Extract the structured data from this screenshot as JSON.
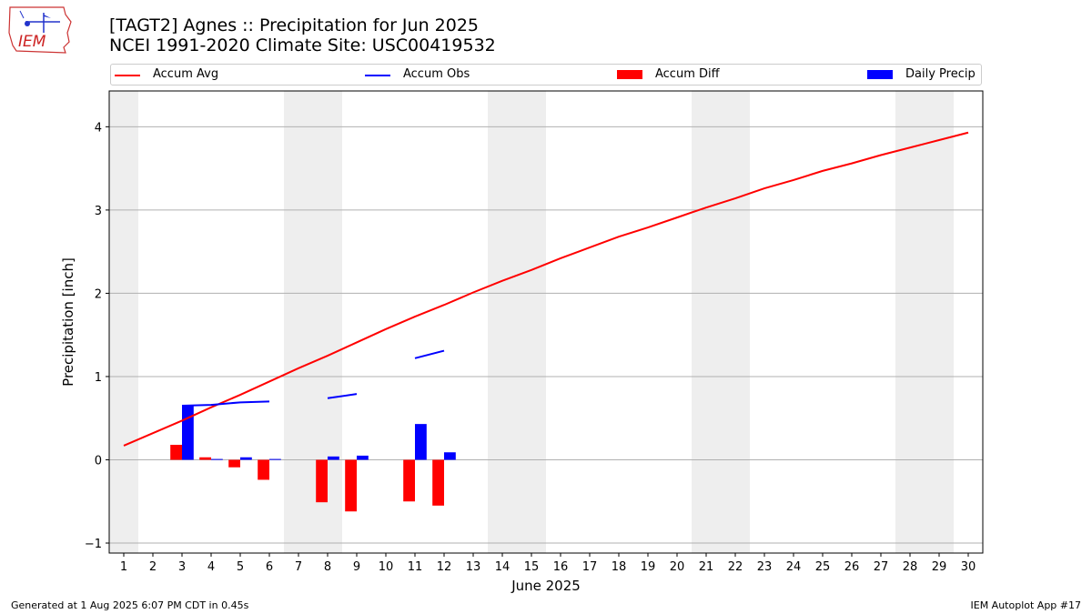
{
  "header": {
    "title_line1": "[TAGT2] Agnes :: Precipitation for Jun 2025",
    "title_line2": "NCEI 1991-2020 Climate Site: USC00419532",
    "logo_text": "IEM"
  },
  "legend": {
    "accum_avg": "Accum Avg",
    "accum_obs": "Accum Obs",
    "accum_diff": "Accum Diff",
    "daily_precip": "Daily Precip"
  },
  "footer": {
    "generated": "Generated at 1 Aug 2025 6:07 PM CDT in 0.45s",
    "app": "IEM Autoplot App #17"
  },
  "colors": {
    "avg": "#ff0000",
    "obs": "#0000ff",
    "diff": "#ff0000",
    "precip": "#0000ff",
    "weekend": "#eeeeee",
    "grid": "#b0b0b0"
  },
  "chart_data": {
    "type": "bar",
    "title": "[TAGT2] Agnes :: Precipitation for Jun 2025",
    "subtitle": "NCEI 1991-2020 Climate Site: USC00419532",
    "xlabel": "June 2025",
    "ylabel": "Precipitation [inch]",
    "xlim": [
      0.5,
      30.5
    ],
    "ylim": [
      -1.12,
      4.43
    ],
    "yticks": [
      -1,
      0,
      1,
      2,
      3,
      4
    ],
    "grid": true,
    "legend_position": "top",
    "days": [
      1,
      2,
      3,
      4,
      5,
      6,
      7,
      8,
      9,
      10,
      11,
      12,
      13,
      14,
      15,
      16,
      17,
      18,
      19,
      20,
      21,
      22,
      23,
      24,
      25,
      26,
      27,
      28,
      29,
      30
    ],
    "weekend_bands": [
      [
        0.5,
        1.5
      ],
      [
        6.5,
        8.5
      ],
      [
        13.5,
        15.5
      ],
      [
        20.5,
        22.5
      ],
      [
        27.5,
        29.5
      ]
    ],
    "series": [
      {
        "name": "Accum Avg",
        "kind": "line",
        "values": [
          0.17,
          0.32,
          0.47,
          0.63,
          0.78,
          0.94,
          1.1,
          1.25,
          1.41,
          1.57,
          1.72,
          1.86,
          2.01,
          2.15,
          2.28,
          2.42,
          2.55,
          2.68,
          2.79,
          2.91,
          3.03,
          3.14,
          3.26,
          3.36,
          3.47,
          3.56,
          3.66,
          3.75,
          3.84,
          3.93
        ]
      },
      {
        "name": "Accum Obs",
        "kind": "line",
        "segments": [
          [
            [
              3,
              0.65
            ],
            [
              4,
              0.66
            ],
            [
              5,
              0.69
            ],
            [
              6,
              0.7
            ]
          ],
          [
            [
              8,
              0.74
            ],
            [
              9,
              0.79
            ]
          ],
          [
            [
              11,
              1.22
            ],
            [
              12,
              1.31
            ]
          ]
        ]
      },
      {
        "name": "Accum Diff",
        "kind": "bar",
        "values": [
          [
            3,
            0.18
          ],
          [
            4,
            0.03
          ],
          [
            5,
            -0.09
          ],
          [
            6,
            -0.24
          ],
          [
            8,
            -0.51
          ],
          [
            9,
            -0.62
          ],
          [
            11,
            -0.5
          ],
          [
            12,
            -0.55
          ]
        ]
      },
      {
        "name": "Daily Precip",
        "kind": "bar",
        "values": [
          [
            3,
            0.65
          ],
          [
            4,
            0.01
          ],
          [
            5,
            0.03
          ],
          [
            6,
            0.01
          ],
          [
            8,
            0.04
          ],
          [
            9,
            0.05
          ],
          [
            11,
            0.43
          ],
          [
            12,
            0.09
          ]
        ]
      }
    ]
  }
}
